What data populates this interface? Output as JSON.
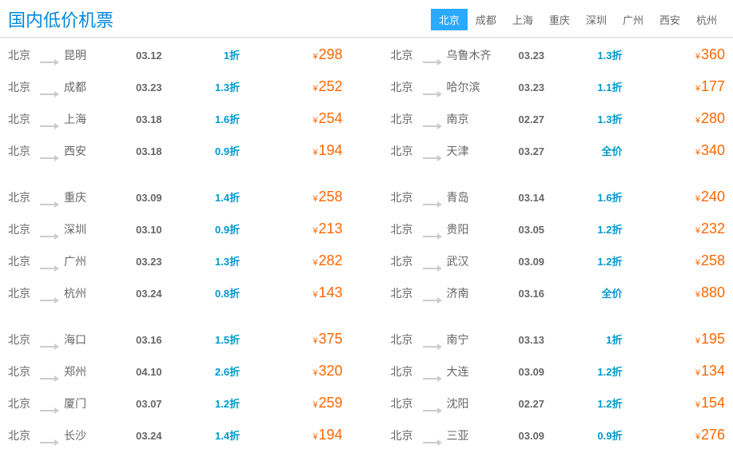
{
  "header": {
    "title": "国内低价机票",
    "tabs": [
      "北京",
      "成都",
      "上海",
      "重庆",
      "深圳",
      "广州",
      "西安",
      "杭州"
    ],
    "active_tab": "北京"
  },
  "currency_symbol": "¥",
  "left_groups": [
    [
      {
        "from": "北京",
        "to": "昆明",
        "date": "03.12",
        "discount": "1折",
        "price": "298"
      },
      {
        "from": "北京",
        "to": "成都",
        "date": "03.23",
        "discount": "1.3折",
        "price": "252"
      },
      {
        "from": "北京",
        "to": "上海",
        "date": "03.18",
        "discount": "1.6折",
        "price": "254"
      },
      {
        "from": "北京",
        "to": "西安",
        "date": "03.18",
        "discount": "0.9折",
        "price": "194"
      }
    ],
    [
      {
        "from": "北京",
        "to": "重庆",
        "date": "03.09",
        "discount": "1.4折",
        "price": "258"
      },
      {
        "from": "北京",
        "to": "深圳",
        "date": "03.10",
        "discount": "0.9折",
        "price": "213"
      },
      {
        "from": "北京",
        "to": "广州",
        "date": "03.23",
        "discount": "1.3折",
        "price": "282"
      },
      {
        "from": "北京",
        "to": "杭州",
        "date": "03.24",
        "discount": "0.8折",
        "price": "143"
      }
    ],
    [
      {
        "from": "北京",
        "to": "海口",
        "date": "03.16",
        "discount": "1.5折",
        "price": "375"
      },
      {
        "from": "北京",
        "to": "郑州",
        "date": "04.10",
        "discount": "2.6折",
        "price": "320"
      },
      {
        "from": "北京",
        "to": "厦门",
        "date": "03.07",
        "discount": "1.2折",
        "price": "259"
      },
      {
        "from": "北京",
        "to": "长沙",
        "date": "03.24",
        "discount": "1.4折",
        "price": "194"
      }
    ]
  ],
  "right_groups": [
    [
      {
        "from": "北京",
        "to": "乌鲁木齐",
        "date": "03.23",
        "discount": "1.3折",
        "price": "360"
      },
      {
        "from": "北京",
        "to": "哈尔滨",
        "date": "03.23",
        "discount": "1.1折",
        "price": "177"
      },
      {
        "from": "北京",
        "to": "南京",
        "date": "02.27",
        "discount": "1.3折",
        "price": "280"
      },
      {
        "from": "北京",
        "to": "天津",
        "date": "03.27",
        "discount": "全价",
        "price": "340"
      }
    ],
    [
      {
        "from": "北京",
        "to": "青岛",
        "date": "03.14",
        "discount": "1.6折",
        "price": "240"
      },
      {
        "from": "北京",
        "to": "贵阳",
        "date": "03.05",
        "discount": "1.2折",
        "price": "232"
      },
      {
        "from": "北京",
        "to": "武汉",
        "date": "03.09",
        "discount": "1.2折",
        "price": "258"
      },
      {
        "from": "北京",
        "to": "济南",
        "date": "03.16",
        "discount": "全价",
        "price": "880"
      }
    ],
    [
      {
        "from": "北京",
        "to": "南宁",
        "date": "03.13",
        "discount": "1折",
        "price": "195"
      },
      {
        "from": "北京",
        "to": "大连",
        "date": "03.09",
        "discount": "1.2折",
        "price": "134"
      },
      {
        "from": "北京",
        "to": "沈阳",
        "date": "02.27",
        "discount": "1.2折",
        "price": "154"
      },
      {
        "from": "北京",
        "to": "三亚",
        "date": "03.09",
        "discount": "0.9折",
        "price": "276"
      }
    ]
  ]
}
